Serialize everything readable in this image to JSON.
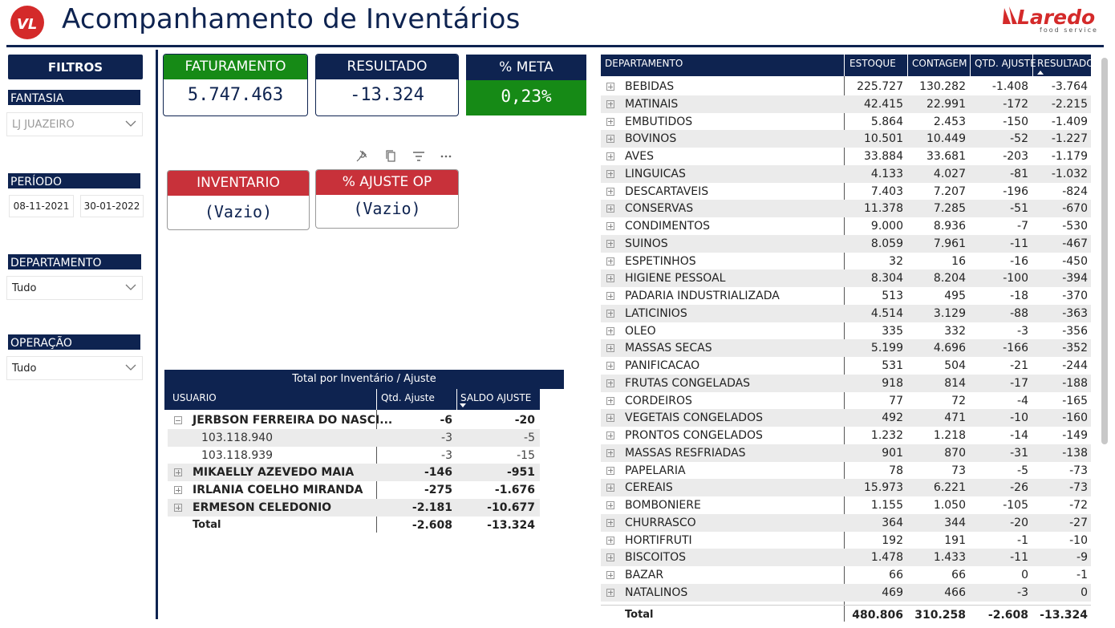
{
  "header": {
    "title": "Acompanhamento de Inventários",
    "brand_name": "Laredo",
    "brand_tagline": "food service"
  },
  "filters": {
    "title": "FILTROS",
    "fantasia_label": "FANTASIA",
    "fantasia_value": "LJ JUAZEIRO",
    "periodo_label": "PERÍODO",
    "date_start": "08-11-2021",
    "date_end": "30-01-2022",
    "departamento_label": "DEPARTAMENTO",
    "departamento_value": "Tudo",
    "operacao_label": "OPERAÇÃO",
    "operacao_value": "Tudo"
  },
  "cards": {
    "faturamento": {
      "label": "FATURAMENTO",
      "value": "5.747.463"
    },
    "resultado": {
      "label": "RESULTADO",
      "value": "-13.324"
    },
    "meta": {
      "label": "% META",
      "value": "0,23%"
    },
    "inventario": {
      "label": "INVENTARIO",
      "value": "(Vazio)"
    },
    "ajuste_op": {
      "label": "% AJUSTE OP",
      "value": "(Vazio)"
    }
  },
  "colors": {
    "navy": "#0e2350",
    "green": "#168a16",
    "red": "#c8313a"
  },
  "user_table": {
    "title": "Total por Inventário / Ajuste",
    "columns": [
      "USUARIO",
      "Qtd. Ajuste",
      "SALDO AJUSTE"
    ],
    "rows": [
      {
        "name": "JERBSON FERREIRA DO NASCI...",
        "qtd": "-6",
        "saldo": "-20",
        "level": 0,
        "expanded": true
      },
      {
        "name": "103.118.940",
        "qtd": "-3",
        "saldo": "-5",
        "level": 1
      },
      {
        "name": "103.118.939",
        "qtd": "-3",
        "saldo": "-15",
        "level": 1
      },
      {
        "name": "MIKAELLY AZEVEDO MAIA",
        "qtd": "-146",
        "saldo": "-951",
        "level": 0
      },
      {
        "name": "IRLANIA COELHO MIRANDA",
        "qtd": "-275",
        "saldo": "-1.676",
        "level": 0
      },
      {
        "name": "ERMESON CELEDONIO",
        "qtd": "-2.181",
        "saldo": "-10.677",
        "level": 0
      }
    ],
    "total": {
      "name": "Total",
      "qtd": "-2.608",
      "saldo": "-13.324"
    }
  },
  "dept_table": {
    "columns": [
      "DEPARTAMENTO",
      "ESTOQUE",
      "CONTAGEM",
      "QTD. AJUSTE",
      "RESULTADO"
    ],
    "rows": [
      [
        "BEBIDAS",
        "225.727",
        "130.282",
        "-1.408",
        "-3.764"
      ],
      [
        "MATINAIS",
        "42.415",
        "22.991",
        "-172",
        "-2.215"
      ],
      [
        "EMBUTIDOS",
        "5.864",
        "2.453",
        "-150",
        "-1.409"
      ],
      [
        "BOVINOS",
        "10.501",
        "10.449",
        "-52",
        "-1.227"
      ],
      [
        "AVES",
        "33.884",
        "33.681",
        "-203",
        "-1.179"
      ],
      [
        "LINGUICAS",
        "4.133",
        "4.027",
        "-81",
        "-1.032"
      ],
      [
        "DESCARTAVEIS",
        "7.403",
        "7.207",
        "-196",
        "-824"
      ],
      [
        "CONSERVAS",
        "11.378",
        "7.285",
        "-51",
        "-670"
      ],
      [
        "CONDIMENTOS",
        "9.000",
        "8.936",
        "-7",
        "-530"
      ],
      [
        "SUINOS",
        "8.059",
        "7.961",
        "-11",
        "-467"
      ],
      [
        "ESPETINHOS",
        "32",
        "16",
        "-16",
        "-450"
      ],
      [
        "HIGIENE PESSOAL",
        "8.304",
        "8.204",
        "-100",
        "-394"
      ],
      [
        "PADARIA INDUSTRIALIZADA",
        "513",
        "495",
        "-18",
        "-370"
      ],
      [
        "LATICINIOS",
        "4.514",
        "3.129",
        "-88",
        "-363"
      ],
      [
        "OLEO",
        "335",
        "332",
        "-3",
        "-356"
      ],
      [
        "MASSAS SECAS",
        "5.199",
        "4.696",
        "-166",
        "-352"
      ],
      [
        "PANIFICACAO",
        "531",
        "504",
        "-21",
        "-244"
      ],
      [
        "FRUTAS CONGELADAS",
        "918",
        "814",
        "-17",
        "-188"
      ],
      [
        "CORDEIROS",
        "77",
        "72",
        "-4",
        "-165"
      ],
      [
        "VEGETAIS CONGELADOS",
        "492",
        "471",
        "-10",
        "-160"
      ],
      [
        "PRONTOS CONGELADOS",
        "1.232",
        "1.218",
        "-14",
        "-149"
      ],
      [
        "MASSAS RESFRIADAS",
        "901",
        "870",
        "-31",
        "-138"
      ],
      [
        "PAPELARIA",
        "78",
        "73",
        "-5",
        "-73"
      ],
      [
        "CEREAIS",
        "15.973",
        "6.221",
        "-26",
        "-73"
      ],
      [
        "BOMBONIERE",
        "1.155",
        "1.050",
        "-105",
        "-72"
      ],
      [
        "CHURRASCO",
        "364",
        "344",
        "-20",
        "-27"
      ],
      [
        "HORTIFRUTI",
        "192",
        "191",
        "-1",
        "-10"
      ],
      [
        "BISCOITOS",
        "1.478",
        "1.433",
        "-11",
        "-9"
      ],
      [
        "BAZAR",
        "66",
        "66",
        "0",
        "-1"
      ],
      [
        "NATALINOS",
        "469",
        "466",
        "-3",
        "0"
      ]
    ],
    "total": [
      "Total",
      "480.806",
      "310.258",
      "-2.608",
      "-13.324"
    ]
  }
}
